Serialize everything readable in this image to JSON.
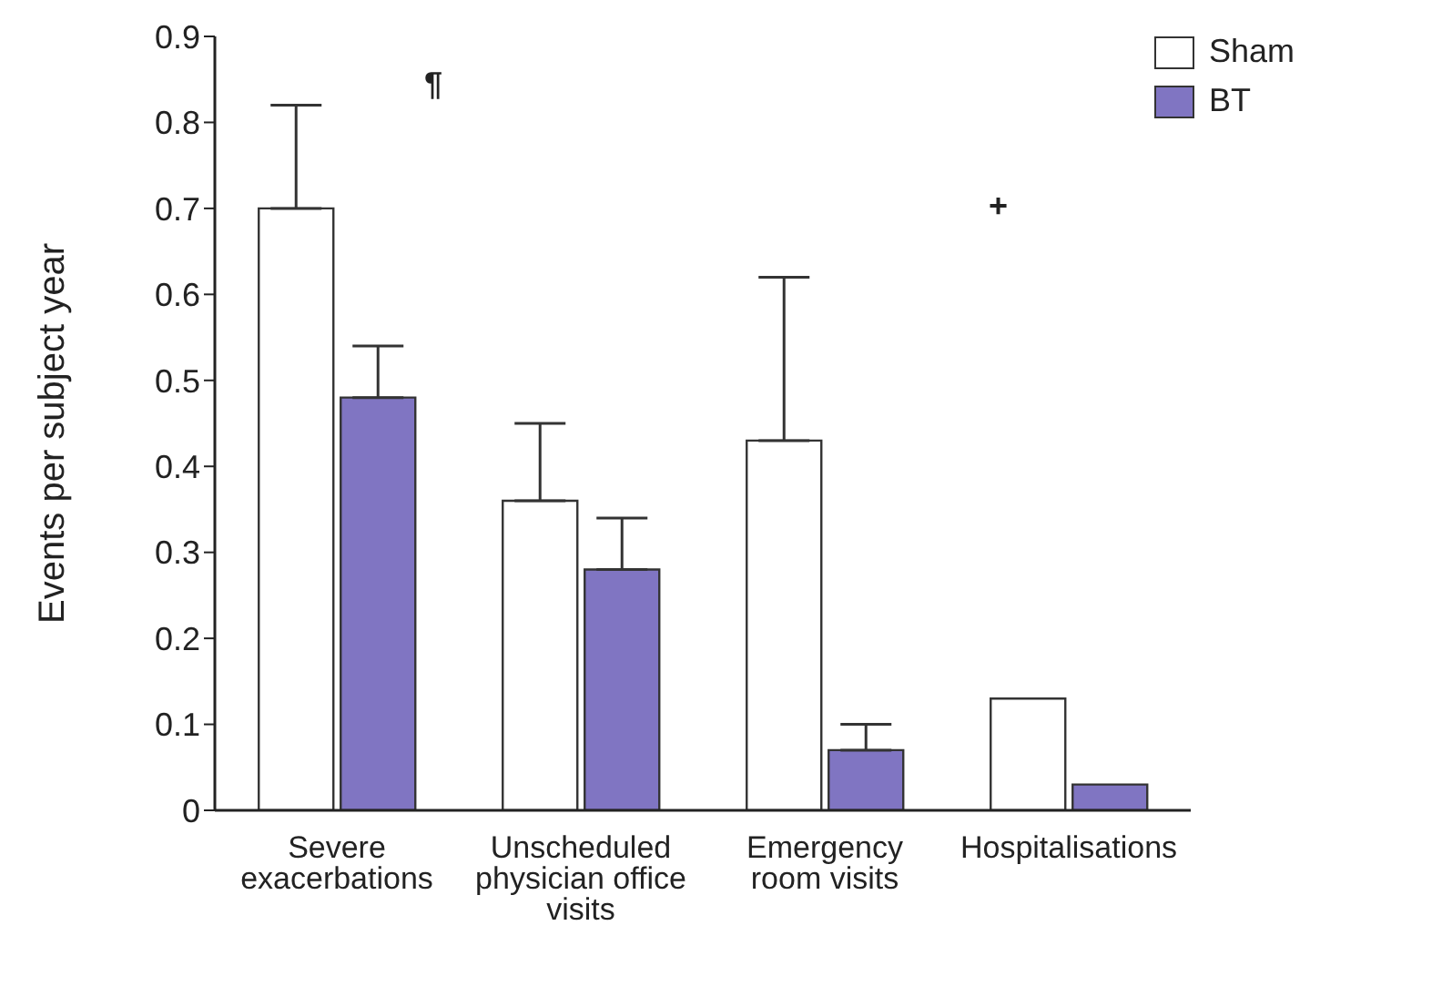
{
  "chart_data": {
    "type": "bar",
    "ylabel": "Events per subject year",
    "categories": [
      "Severe exacerbations",
      "Unscheduled physician office visits",
      "Emergency room visits",
      "Hospitalisations"
    ],
    "series": [
      {
        "name": "Sham",
        "color": "#ffffff",
        "values": [
          0.7,
          0.36,
          0.43,
          0.13
        ],
        "errors": [
          [
            0.7,
            0.82
          ],
          [
            0.36,
            0.45
          ],
          [
            0.43,
            0.62
          ],
          null
        ]
      },
      {
        "name": "BT",
        "color": "#8075c2",
        "values": [
          0.48,
          0.28,
          0.07,
          0.03
        ],
        "errors": [
          [
            0.48,
            0.54
          ],
          [
            0.28,
            0.34
          ],
          [
            0.07,
            0.1
          ],
          null
        ]
      }
    ],
    "ylim": [
      0,
      0.9
    ],
    "yticks": [
      0,
      0.1,
      0.2,
      0.3,
      0.4,
      0.5,
      0.6,
      0.7,
      0.8,
      0.9
    ],
    "grid": false,
    "legend": "top right",
    "annotations": [
      "¶",
      "+"
    ]
  }
}
